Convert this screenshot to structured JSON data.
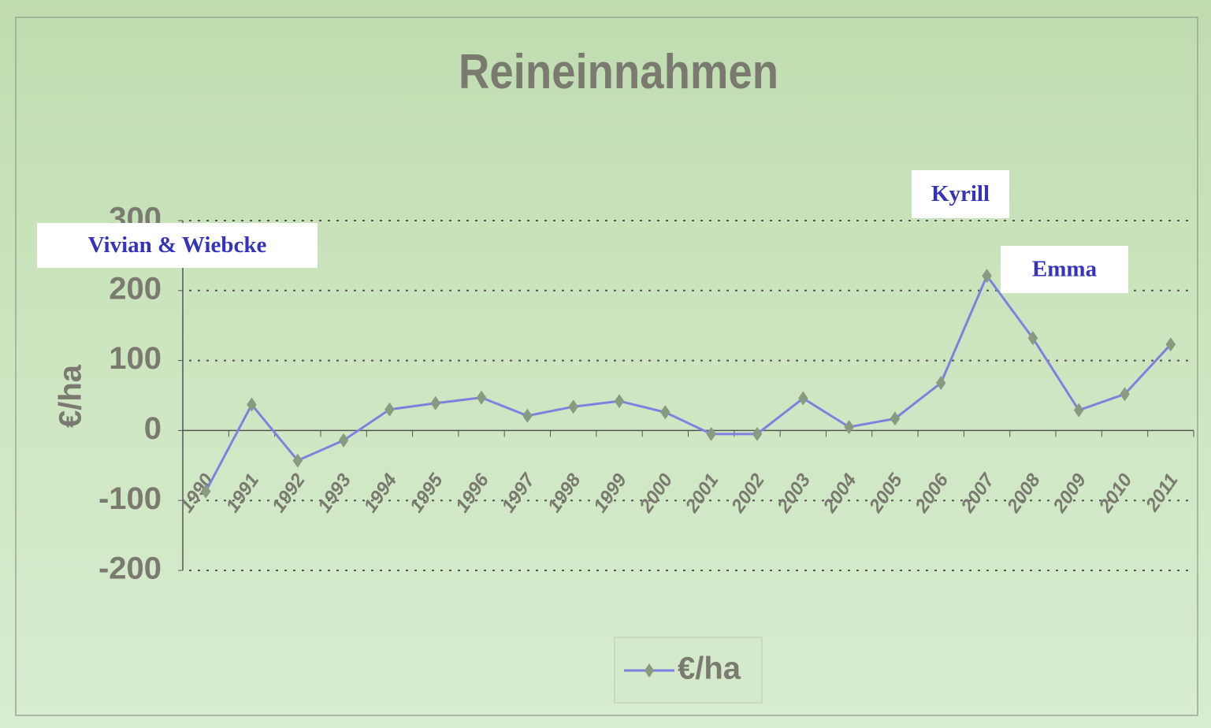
{
  "chart_data": {
    "type": "line",
    "title": "Reineinnahmen",
    "ylabel": "€/ha",
    "categories": [
      "1990",
      "1991",
      "1992",
      "1993",
      "1994",
      "1995",
      "1996",
      "1997",
      "1998",
      "1999",
      "2000",
      "2001",
      "2002",
      "2003",
      "2004",
      "2005",
      "2006",
      "2007",
      "2008",
      "2009",
      "2010",
      "2011"
    ],
    "series": [
      {
        "name": "€/ha",
        "color": "#8080e0",
        "marker_color": "#8a9a80",
        "values": [
          -87,
          37,
          -43,
          -14,
          30,
          39,
          47,
          21,
          34,
          42,
          26,
          -5,
          -5,
          46,
          5,
          17,
          68,
          221,
          132,
          29,
          52,
          123
        ]
      }
    ],
    "ylim": [
      -200,
      300
    ],
    "yticks": [
      -200,
      -100,
      0,
      100,
      200,
      300
    ],
    "grid": true,
    "legend": "bottom",
    "annotations": [
      {
        "text": "Vivian & Wiebcke"
      },
      {
        "text": "Kyrill"
      },
      {
        "text": "Emma"
      }
    ]
  }
}
